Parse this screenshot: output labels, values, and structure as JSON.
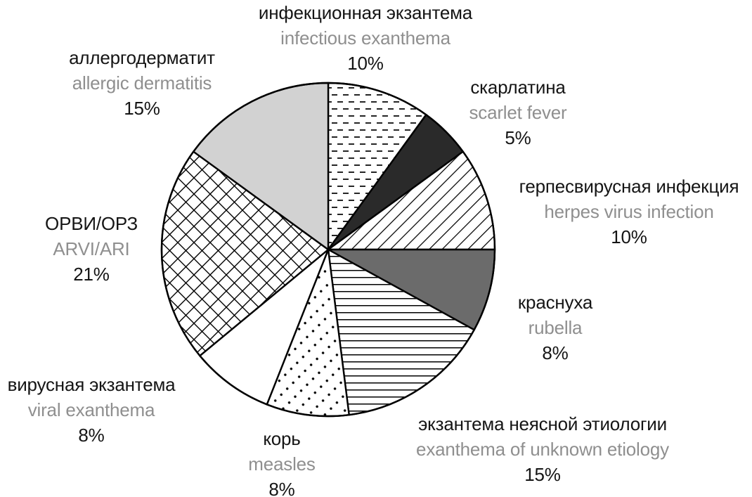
{
  "chart_data": {
    "type": "pie",
    "title": "",
    "units": "%",
    "total": 100,
    "direction": "clockwise",
    "start_angle_deg": 0,
    "legend_position": "around-pie",
    "slices": [
      {
        "label_ru": "инфекционная экзантема",
        "label_en": "infectious exanthema",
        "value": 10,
        "pct_label": "10%",
        "fill": "pattern-dashes",
        "pattern_desc": "staggered horizontal dashes"
      },
      {
        "label_ru": "скарлатина",
        "label_en": "scarlet fever",
        "value": 5,
        "pct_label": "5%",
        "fill": "#2a2a2a",
        "pattern_desc": "solid near-black"
      },
      {
        "label_ru": "герпесвирусная инфекция",
        "label_en": "herpes virus infection",
        "value": 10,
        "pct_label": "10%",
        "fill": "pattern-diagonal",
        "pattern_desc": "thin diagonal lines"
      },
      {
        "label_ru": "краснуха",
        "label_en": "rubella",
        "value": 8,
        "pct_label": "8%",
        "fill": "#6b6b6b",
        "pattern_desc": "solid dark gray"
      },
      {
        "label_ru": "экзантема неясной этиологии",
        "label_en": "exanthema of unknown etiology",
        "value": 15,
        "pct_label": "15%",
        "fill": "pattern-hlines",
        "pattern_desc": "horizontal lines"
      },
      {
        "label_ru": "корь",
        "label_en": "measles",
        "value": 8,
        "pct_label": "8%",
        "fill": "pattern-dots",
        "pattern_desc": "diagonal rows of dots"
      },
      {
        "label_ru": "вирусная экзантема",
        "label_en": "viral exanthema",
        "value": 8,
        "pct_label": "8%",
        "fill": "#ffffff",
        "pattern_desc": "plain white"
      },
      {
        "label_ru": "ОРВИ/ОРЗ",
        "label_en": "ARVI/ARI",
        "value": 21,
        "pct_label": "21%",
        "fill": "pattern-crosshatch",
        "pattern_desc": "diagonal crosshatch grid"
      },
      {
        "label_ru": "аллергодерматит",
        "label_en": "allergic dermatitis",
        "value": 15,
        "pct_label": "15%",
        "fill": "#d2d2d2",
        "pattern_desc": "solid light gray"
      }
    ],
    "colors": {
      "outline": "#000000",
      "label_primary": "#151515",
      "label_secondary": "#8f8f8f",
      "background": "#ffffff"
    }
  }
}
